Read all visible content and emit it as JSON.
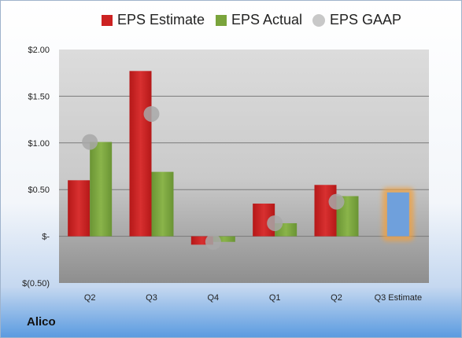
{
  "chart_data": {
    "type": "bar",
    "categories": [
      "Q2",
      "Q3",
      "Q4",
      "Q1",
      "Q2",
      "Q3 Estimate"
    ],
    "series": [
      {
        "name": "EPS Estimate",
        "values": [
          0.6,
          1.77,
          -0.09,
          0.35,
          0.55,
          null
        ],
        "color": "#cc2222"
      },
      {
        "name": "EPS Actual",
        "values": [
          1.01,
          0.69,
          -0.06,
          0.14,
          0.43,
          null
        ],
        "color": "#7aa43c"
      },
      {
        "name": "EPS GAAP",
        "values": [
          1.01,
          1.31,
          -0.06,
          0.14,
          0.37,
          null
        ],
        "color": "#a8a8a8"
      }
    ],
    "projection": {
      "category": "Q3 Estimate",
      "value": 0.47,
      "color": "#6fa0dc",
      "glow": "#f0a040"
    },
    "yticks": [
      "$2.00",
      "$1.50",
      "$1.00",
      "$0.50",
      "$-",
      "$(0.50)"
    ],
    "ylim": [
      -0.5,
      2.0
    ]
  },
  "legend": {
    "estimate": "EPS Estimate",
    "actual": "EPS Actual",
    "gaap": "EPS GAAP"
  },
  "company": "Alico"
}
